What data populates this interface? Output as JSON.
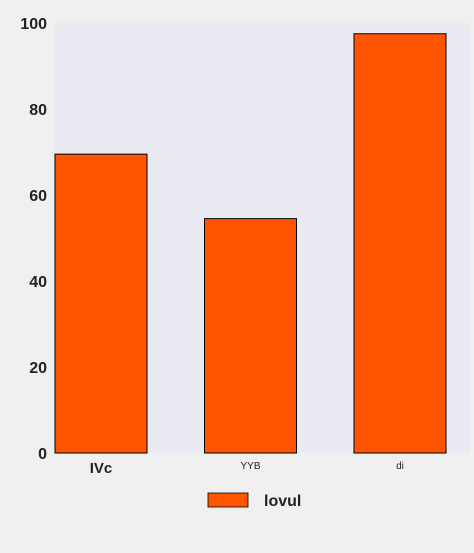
{
  "chart_data": {
    "type": "bar",
    "categories": [
      "IVc",
      "YYB",
      "di"
    ],
    "series": [
      {
        "name": "lovul",
        "values": [
          69.5,
          54.5,
          97.5
        ]
      }
    ],
    "title": "",
    "xlabel": "",
    "ylabel": "",
    "ylim": [
      0,
      100
    ],
    "yticks": [
      0,
      20,
      40,
      60,
      80,
      100
    ],
    "grid": false,
    "legend_position": "bottom-center",
    "colors": {
      "bar_fill": "#ff5500",
      "bar_edge": "#000000",
      "plot_background": "#eaeaf2",
      "page_background": "#f0f0f0"
    }
  }
}
